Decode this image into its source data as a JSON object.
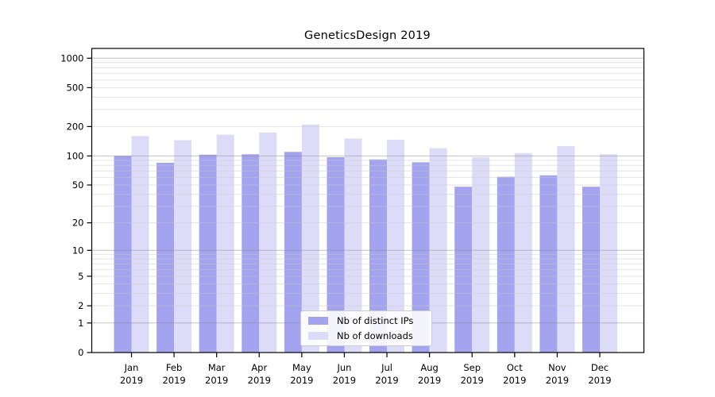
{
  "chart_data": {
    "type": "bar",
    "title": "GeneticsDesign 2019",
    "categories": [
      "Jan",
      "Feb",
      "Mar",
      "Apr",
      "May",
      "Jun",
      "Jul",
      "Aug",
      "Sep",
      "Oct",
      "Nov",
      "Dec"
    ],
    "category_year": "2019",
    "series": [
      {
        "name": "Nb of distinct IPs",
        "color": "#a3a3ef",
        "values": [
          100,
          85,
          103,
          104,
          110,
          97,
          92,
          86,
          48,
          61,
          63,
          48
        ]
      },
      {
        "name": "Nb of downloads",
        "color": "#dcdcf8",
        "values": [
          160,
          145,
          165,
          174,
          210,
          151,
          147,
          120,
          97,
          107,
          126,
          104
        ]
      }
    ],
    "y_axis": {
      "scale": "log10(1+x)",
      "tick_labels": [
        "1000",
        "500",
        "200",
        "100",
        "50",
        "20",
        "10",
        "5",
        "2",
        "1",
        "0"
      ],
      "tick_values": [
        1000,
        500,
        200,
        100,
        50,
        20,
        10,
        5,
        2,
        1,
        0
      ],
      "ylim": [
        0,
        1260
      ]
    },
    "grid": {
      "minor_lines": "2-9 per decade",
      "decade_line_color": "#bdbdbd",
      "minor_line_color": "#e6e6e6",
      "drawn_over_bars": true
    },
    "legend_position": "inside-bottom-center",
    "frame_color": "#000000"
  }
}
